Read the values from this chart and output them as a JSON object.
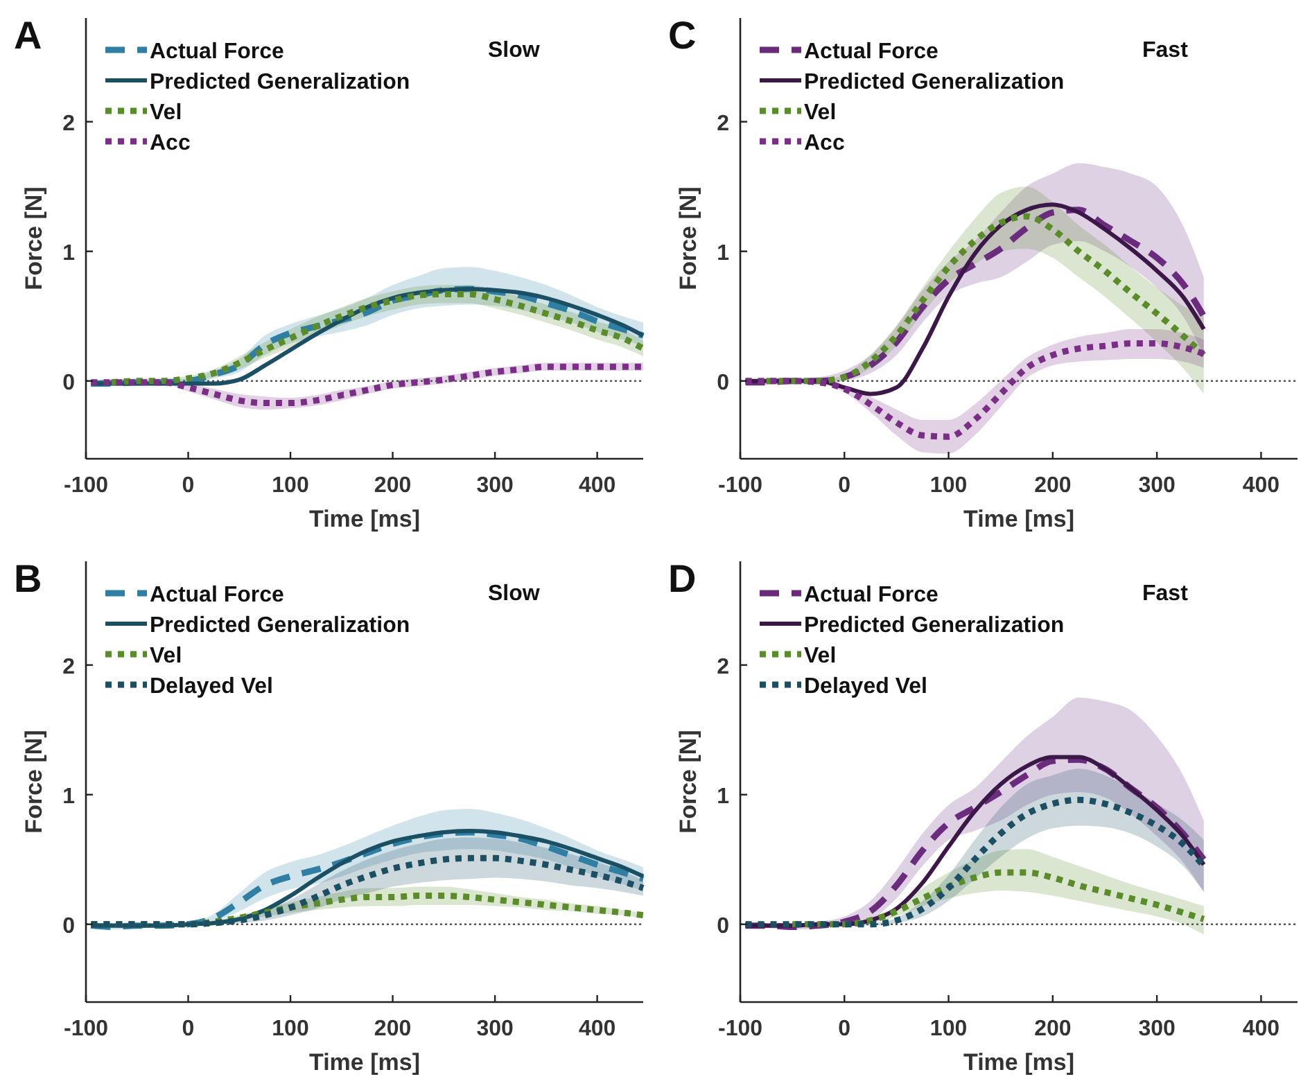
{
  "chart_data": [
    {
      "type": "line",
      "title": "A",
      "annotations": [
        "Slow"
      ],
      "xlabel": "Time [ms]",
      "ylabel": "Force [N]",
      "xlim": [
        -100,
        445
      ],
      "xticks": [
        -100,
        0,
        100,
        200,
        300,
        400
      ],
      "ylim": [
        -0.6,
        2.8
      ],
      "yticks": [
        0,
        1,
        2
      ],
      "legend": "top left",
      "grid": false,
      "ref_lines": [
        {
          "axis": "y",
          "value": 0,
          "color": "#555555",
          "line_style": "dotted"
        }
      ],
      "x": [
        -95,
        -75,
        -50,
        -25,
        0,
        25,
        50,
        75,
        100,
        125,
        150,
        175,
        200,
        225,
        250,
        275,
        300,
        325,
        350,
        375,
        400,
        425,
        445
      ],
      "series": [
        {
          "name": "Actual Force",
          "color": "#2f7fa5",
          "line_style": "dashed",
          "values": [
            -0.02,
            -0.02,
            -0.01,
            -0.01,
            0,
            0.05,
            0.12,
            0.28,
            0.37,
            0.42,
            0.47,
            0.53,
            0.62,
            0.66,
            0.7,
            0.71,
            0.69,
            0.66,
            0.6,
            0.54,
            0.46,
            0.4,
            0.35
          ],
          "lower": [
            -0.04,
            -0.04,
            -0.03,
            -0.03,
            -0.02,
            0.02,
            0.07,
            0.2,
            0.29,
            0.34,
            0.38,
            0.43,
            0.51,
            0.56,
            0.58,
            0.59,
            0.58,
            0.55,
            0.5,
            0.45,
            0.38,
            0.32,
            0.27
          ],
          "upper": [
            0,
            0,
            0.01,
            0.01,
            0.02,
            0.08,
            0.17,
            0.35,
            0.44,
            0.5,
            0.56,
            0.64,
            0.74,
            0.81,
            0.87,
            0.88,
            0.85,
            0.8,
            0.74,
            0.66,
            0.57,
            0.5,
            0.45
          ]
        },
        {
          "name": "Predicted Generalization",
          "color": "#1b4f64",
          "line_style": "solid",
          "values": [
            -0.02,
            -0.02,
            -0.02,
            -0.02,
            -0.02,
            -0.02,
            0.01,
            0.12,
            0.24,
            0.36,
            0.47,
            0.57,
            0.64,
            0.68,
            0.7,
            0.71,
            0.7,
            0.68,
            0.64,
            0.58,
            0.51,
            0.43,
            0.35
          ]
        },
        {
          "name": "Vel",
          "color": "#5b8c2a",
          "line_style": "dotted",
          "values": [
            null,
            -0.01,
            0,
            0,
            0.02,
            0.06,
            0.14,
            0.24,
            0.33,
            0.42,
            0.5,
            0.57,
            0.62,
            0.66,
            0.67,
            0.67,
            0.63,
            0.58,
            0.52,
            0.46,
            0.39,
            0.33,
            0.25
          ],
          "lower": [
            -0.03,
            -0.03,
            -0.02,
            -0.02,
            0,
            0.03,
            0.09,
            0.18,
            0.26,
            0.35,
            0.43,
            0.5,
            0.55,
            0.59,
            0.6,
            0.6,
            0.56,
            0.51,
            0.45,
            0.39,
            0.32,
            0.26,
            0.19
          ],
          "upper": [
            0.01,
            0.01,
            0.02,
            0.02,
            0.04,
            0.09,
            0.19,
            0.3,
            0.4,
            0.49,
            0.57,
            0.64,
            0.69,
            0.73,
            0.74,
            0.74,
            0.7,
            0.65,
            0.59,
            0.53,
            0.46,
            0.4,
            0.31
          ]
        },
        {
          "name": "Acc",
          "color": "#7a2e85",
          "line_style": "dotted",
          "values": [
            -0.01,
            -0.01,
            -0.01,
            -0.01,
            -0.05,
            -0.1,
            -0.15,
            -0.17,
            -0.17,
            -0.15,
            -0.11,
            -0.07,
            -0.03,
            -0.01,
            0.01,
            0.04,
            0.07,
            0.09,
            0.11,
            0.11,
            0.11,
            0.11,
            0.11
          ],
          "lower": [
            -0.02,
            -0.02,
            -0.02,
            -0.02,
            -0.08,
            -0.14,
            -0.2,
            -0.22,
            -0.21,
            -0.19,
            -0.15,
            -0.1,
            -0.06,
            -0.04,
            -0.02,
            0.01,
            0.04,
            0.06,
            0.08,
            0.08,
            0.08,
            0.08,
            0.08
          ],
          "upper": [
            0,
            0,
            0,
            0,
            -0.02,
            -0.06,
            -0.1,
            -0.12,
            -0.13,
            -0.11,
            -0.07,
            -0.04,
            0,
            0.02,
            0.04,
            0.07,
            0.1,
            0.12,
            0.14,
            0.14,
            0.14,
            0.14,
            0.14
          ]
        }
      ]
    },
    {
      "type": "line",
      "title": "C",
      "annotations": [
        "Fast"
      ],
      "xlabel": "Time [ms]",
      "ylabel": "Force [N]",
      "xlim": [
        -100,
        435
      ],
      "xticks": [
        -100,
        0,
        100,
        200,
        300,
        400
      ],
      "ylim": [
        -0.6,
        2.8
      ],
      "yticks": [
        0,
        1,
        2
      ],
      "legend": "top left",
      "grid": false,
      "ref_lines": [
        {
          "axis": "y",
          "value": 0,
          "color": "#555555",
          "line_style": "dotted"
        }
      ],
      "x": [
        -95,
        -75,
        -50,
        -25,
        0,
        25,
        50,
        75,
        100,
        125,
        150,
        175,
        200,
        225,
        250,
        275,
        300,
        325,
        345
      ],
      "series": [
        {
          "name": "Actual Force",
          "color": "#6b2c7e",
          "line_style": "dashed",
          "values": [
            -0.01,
            -0.01,
            0,
            0,
            0.03,
            0.12,
            0.3,
            0.57,
            0.78,
            0.9,
            1.02,
            1.18,
            1.3,
            1.32,
            1.2,
            1.08,
            0.95,
            0.75,
            0.5
          ],
          "lower": [
            -0.03,
            -0.03,
            -0.02,
            -0.02,
            0,
            0.06,
            0.2,
            0.45,
            0.66,
            0.75,
            0.8,
            0.92,
            1.05,
            1.08,
            1.0,
            0.88,
            0.72,
            0.5,
            0.2
          ],
          "upper": [
            0.01,
            0.01,
            0.02,
            0.03,
            0.08,
            0.2,
            0.42,
            0.7,
            0.92,
            1.08,
            1.3,
            1.5,
            1.6,
            1.68,
            1.65,
            1.6,
            1.5,
            1.2,
            0.8
          ]
        },
        {
          "name": "Predicted Generalization",
          "color": "#3c1848",
          "line_style": "solid",
          "values": [
            0,
            0,
            0,
            0,
            -0.05,
            -0.1,
            -0.05,
            0.25,
            0.65,
            0.98,
            1.2,
            1.32,
            1.36,
            1.3,
            1.17,
            1.02,
            0.85,
            0.65,
            0.4
          ]
        },
        {
          "name": "Vel",
          "color": "#5b8c2a",
          "line_style": "dotted",
          "values": [
            null,
            0,
            0,
            0,
            0.03,
            0.15,
            0.35,
            0.62,
            0.88,
            1.08,
            1.22,
            1.27,
            1.17,
            1.0,
            0.85,
            0.68,
            0.52,
            0.35,
            0.2
          ],
          "lower": [
            -0.01,
            -0.01,
            -0.01,
            -0.01,
            0.01,
            0.1,
            0.27,
            0.52,
            0.75,
            0.9,
            1.0,
            1.02,
            0.95,
            0.8,
            0.65,
            0.48,
            0.3,
            0.1,
            -0.1
          ],
          "upper": [
            0.01,
            0.01,
            0.01,
            0.01,
            0.05,
            0.2,
            0.43,
            0.72,
            1.0,
            1.25,
            1.45,
            1.5,
            1.38,
            1.2,
            1.05,
            0.88,
            0.72,
            0.58,
            0.5
          ]
        },
        {
          "name": "Acc",
          "color": "#7a2e85",
          "line_style": "dotted",
          "values": [
            0,
            0,
            0,
            -0.01,
            -0.06,
            -0.18,
            -0.32,
            -0.42,
            -0.43,
            -0.3,
            -0.1,
            0.1,
            0.2,
            0.25,
            0.27,
            0.29,
            0.29,
            0.26,
            0.21
          ],
          "lower": [
            -0.01,
            -0.01,
            -0.01,
            -0.02,
            -0.09,
            -0.24,
            -0.42,
            -0.55,
            -0.56,
            -0.42,
            -0.2,
            0.02,
            0.12,
            0.15,
            0.16,
            0.17,
            0.17,
            0.15,
            0.1
          ],
          "upper": [
            0.01,
            0.01,
            0.01,
            0,
            -0.03,
            -0.12,
            -0.22,
            -0.3,
            -0.3,
            -0.18,
            0,
            0.18,
            0.28,
            0.34,
            0.37,
            0.4,
            0.4,
            0.37,
            0.32
          ]
        }
      ]
    },
    {
      "type": "line",
      "title": "B",
      "annotations": [
        "Slow"
      ],
      "xlabel": "Time [ms]",
      "ylabel": "Force [N]",
      "xlim": [
        -100,
        445
      ],
      "xticks": [
        -100,
        0,
        100,
        200,
        300,
        400
      ],
      "ylim": [
        -0.6,
        2.8
      ],
      "yticks": [
        0,
        1,
        2
      ],
      "legend": "top left",
      "grid": false,
      "ref_lines": [
        {
          "axis": "y",
          "value": 0,
          "color": "#555555",
          "line_style": "dotted"
        }
      ],
      "x": [
        -95,
        -75,
        -50,
        -25,
        0,
        25,
        50,
        75,
        100,
        125,
        150,
        175,
        200,
        225,
        250,
        275,
        300,
        325,
        350,
        375,
        400,
        425,
        445
      ],
      "series": [
        {
          "name": "Actual Force",
          "color": "#2f7fa5",
          "line_style": "dashed",
          "values": [
            -0.01,
            -0.02,
            -0.01,
            -0.01,
            0,
            0.05,
            0.17,
            0.3,
            0.37,
            0.42,
            0.48,
            0.55,
            0.62,
            0.67,
            0.7,
            0.71,
            0.69,
            0.66,
            0.6,
            0.53,
            0.46,
            0.4,
            0.35
          ],
          "lower": [
            -0.03,
            -0.04,
            -0.03,
            -0.02,
            -0.01,
            0.02,
            0.1,
            0.2,
            0.27,
            0.31,
            0.37,
            0.44,
            0.5,
            0.55,
            0.57,
            0.58,
            0.57,
            0.54,
            0.5,
            0.44,
            0.37,
            0.31,
            0.26
          ],
          "upper": [
            0.01,
            0,
            0.01,
            0,
            0.01,
            0.08,
            0.24,
            0.4,
            0.48,
            0.53,
            0.6,
            0.68,
            0.76,
            0.83,
            0.88,
            0.89,
            0.86,
            0.81,
            0.74,
            0.66,
            0.57,
            0.5,
            0.44
          ]
        },
        {
          "name": "Predicted Generalization",
          "color": "#1b4f64",
          "line_style": "solid",
          "values": [
            -0.01,
            -0.01,
            -0.01,
            -0.01,
            0,
            0.01,
            0.04,
            0.11,
            0.22,
            0.35,
            0.47,
            0.57,
            0.64,
            0.68,
            0.71,
            0.72,
            0.71,
            0.68,
            0.64,
            0.58,
            0.51,
            0.44,
            0.37
          ]
        },
        {
          "name": "Vel",
          "color": "#5b8c2a",
          "line_style": "dotted",
          "values": [
            0,
            0,
            0,
            0,
            0,
            0.02,
            0.05,
            0.09,
            0.13,
            0.16,
            0.19,
            0.21,
            0.21,
            0.22,
            0.22,
            0.21,
            0.19,
            0.17,
            0.15,
            0.13,
            0.11,
            0.09,
            0.07
          ],
          "lower": [
            -0.01,
            -0.01,
            -0.01,
            -0.01,
            -0.01,
            0.01,
            0.03,
            0.06,
            0.09,
            0.11,
            0.13,
            0.14,
            0.14,
            0.15,
            0.15,
            0.15,
            0.14,
            0.13,
            0.11,
            0.1,
            0.08,
            0.07,
            0.05
          ],
          "upper": [
            0.01,
            0.01,
            0.01,
            0.01,
            0.01,
            0.03,
            0.07,
            0.12,
            0.17,
            0.21,
            0.25,
            0.28,
            0.28,
            0.29,
            0.29,
            0.27,
            0.24,
            0.21,
            0.19,
            0.16,
            0.14,
            0.11,
            0.09
          ]
        },
        {
          "name": "Delayed Vel",
          "color": "#1b4f64",
          "line_style": "dotted",
          "values": [
            0,
            0,
            0,
            0,
            0,
            0.01,
            0.03,
            0.07,
            0.13,
            0.21,
            0.3,
            0.37,
            0.43,
            0.47,
            0.5,
            0.51,
            0.51,
            0.49,
            0.46,
            0.42,
            0.38,
            0.33,
            0.28
          ],
          "lower": [
            -0.01,
            -0.01,
            -0.01,
            -0.01,
            -0.01,
            0,
            0.01,
            0.03,
            0.07,
            0.12,
            0.19,
            0.24,
            0.29,
            0.32,
            0.34,
            0.35,
            0.36,
            0.35,
            0.33,
            0.3,
            0.28,
            0.25,
            0.22
          ],
          "upper": [
            0.01,
            0.01,
            0.01,
            0.01,
            0.01,
            0.02,
            0.05,
            0.11,
            0.19,
            0.3,
            0.41,
            0.5,
            0.57,
            0.62,
            0.66,
            0.67,
            0.66,
            0.63,
            0.59,
            0.54,
            0.48,
            0.41,
            0.34
          ]
        }
      ]
    },
    {
      "type": "line",
      "title": "D",
      "annotations": [
        "Fast"
      ],
      "xlabel": "Time [ms]",
      "ylabel": "Force [N]",
      "xlim": [
        -100,
        435
      ],
      "xticks": [
        -100,
        0,
        100,
        200,
        300,
        400
      ],
      "ylim": [
        -0.6,
        2.8
      ],
      "yticks": [
        0,
        1,
        2
      ],
      "legend": "top left",
      "grid": false,
      "ref_lines": [
        {
          "axis": "y",
          "value": 0,
          "color": "#555555",
          "line_style": "dotted"
        }
      ],
      "x": [
        -95,
        -75,
        -50,
        -25,
        0,
        25,
        50,
        75,
        100,
        125,
        150,
        175,
        200,
        225,
        250,
        275,
        300,
        325,
        345
      ],
      "series": [
        {
          "name": "Actual Force",
          "color": "#6b2c7e",
          "line_style": "dashed",
          "values": [
            -0.01,
            -0.01,
            -0.02,
            -0.01,
            0.02,
            0.1,
            0.3,
            0.57,
            0.78,
            0.9,
            1.02,
            1.15,
            1.26,
            1.27,
            1.2,
            1.05,
            0.9,
            0.7,
            0.5
          ],
          "lower": [
            -0.03,
            -0.03,
            -0.04,
            -0.03,
            0,
            0.04,
            0.2,
            0.45,
            0.65,
            0.72,
            0.8,
            0.92,
            1.0,
            1.02,
            0.98,
            0.85,
            0.68,
            0.48,
            0.25
          ],
          "upper": [
            0.01,
            0.01,
            0,
            0.02,
            0.06,
            0.18,
            0.42,
            0.7,
            0.92,
            1.05,
            1.25,
            1.45,
            1.6,
            1.75,
            1.72,
            1.65,
            1.45,
            1.15,
            0.8
          ]
        },
        {
          "name": "Predicted Generalization",
          "color": "#3c1848",
          "line_style": "solid",
          "values": [
            -0.01,
            -0.01,
            -0.01,
            0,
            0,
            0.03,
            0.12,
            0.32,
            0.6,
            0.87,
            1.08,
            1.22,
            1.29,
            1.29,
            1.2,
            1.05,
            0.88,
            0.68,
            0.46
          ]
        },
        {
          "name": "Vel",
          "color": "#5b8c2a",
          "line_style": "dotted",
          "values": [
            null,
            null,
            0,
            0,
            0,
            0.03,
            0.1,
            0.2,
            0.29,
            0.36,
            0.4,
            0.4,
            0.36,
            0.3,
            0.25,
            0.2,
            0.15,
            0.09,
            0.04
          ],
          "lower": [
            -0.01,
            -0.01,
            -0.01,
            -0.01,
            -0.01,
            0.01,
            0.06,
            0.14,
            0.2,
            0.24,
            0.26,
            0.25,
            0.22,
            0.18,
            0.14,
            0.1,
            0.06,
            0,
            -0.08
          ],
          "upper": [
            0.01,
            0.01,
            0.01,
            0.01,
            0.01,
            0.05,
            0.14,
            0.28,
            0.4,
            0.5,
            0.57,
            0.58,
            0.52,
            0.45,
            0.38,
            0.31,
            0.25,
            0.19,
            0.14
          ]
        },
        {
          "name": "Delayed Vel",
          "color": "#1b4f64",
          "line_style": "dotted",
          "values": [
            0,
            0,
            0,
            0,
            0,
            0,
            0.03,
            0.12,
            0.28,
            0.5,
            0.7,
            0.85,
            0.93,
            0.96,
            0.93,
            0.86,
            0.76,
            0.62,
            0.45
          ],
          "lower": [
            -0.01,
            -0.01,
            -0.01,
            -0.01,
            -0.01,
            -0.01,
            0.01,
            0.06,
            0.18,
            0.35,
            0.52,
            0.66,
            0.74,
            0.76,
            0.75,
            0.7,
            0.6,
            0.45,
            0.25
          ],
          "upper": [
            0.01,
            0.01,
            0.01,
            0.01,
            0.01,
            0.01,
            0.05,
            0.18,
            0.38,
            0.65,
            0.9,
            1.08,
            1.15,
            1.2,
            1.15,
            1.05,
            0.93,
            0.8,
            0.65
          ]
        }
      ]
    }
  ]
}
